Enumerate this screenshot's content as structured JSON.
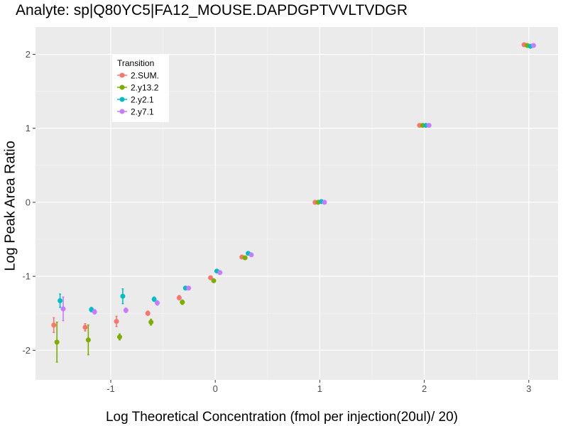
{
  "chart_data": {
    "type": "scatter",
    "title": "Analyte: sp|Q80YC5|FA12_MOUSE.DAPDGPTVVLTVDGR",
    "xlabel": "Log Theoretical Concentration (fmol per injection(20ul)/ 20)",
    "ylabel": "Log Peak Area Ratio",
    "xlim": [
      -1.72,
      3.28
    ],
    "ylim": [
      -2.4,
      2.37
    ],
    "x_ticks": [
      -1,
      0,
      1,
      2,
      3
    ],
    "x_tick_labels": [
      "-1",
      "0",
      "1",
      "2",
      "3"
    ],
    "y_ticks": [
      -2,
      -1,
      0,
      1,
      2
    ],
    "y_tick_labels": [
      "-2",
      "-1",
      "0",
      "1",
      "2"
    ],
    "grid": true,
    "legend": {
      "title": "Transition",
      "position": "top-left"
    },
    "x": [
      -1.5,
      -1.2,
      -0.9,
      -0.6,
      -0.3,
      0,
      0.3,
      1,
      2,
      3
    ],
    "series": [
      {
        "name": "2.SUM.",
        "color": "#F8766D",
        "values": [
          -1.66,
          -1.69,
          -1.61,
          -1.5,
          -1.29,
          -1.02,
          -0.74,
          0.0,
          1.04,
          2.13
        ],
        "errors": [
          0.1,
          0.05,
          0.07,
          0.03,
          0.03,
          0.02,
          0.02,
          0.02,
          0.01,
          0.01
        ]
      },
      {
        "name": "2.y13.2",
        "color": "#7CAE00",
        "values": [
          -1.89,
          -1.86,
          -1.82,
          -1.62,
          -1.35,
          -1.06,
          -0.75,
          0.0,
          1.04,
          2.12
        ],
        "errors": [
          0.27,
          0.2,
          0.04,
          0.04,
          0.03,
          0.02,
          0.02,
          0.02,
          0.01,
          0.01
        ]
      },
      {
        "name": "2.y2.1",
        "color": "#00BFC4",
        "values": [
          -1.33,
          -1.45,
          -1.27,
          -1.31,
          -1.16,
          -0.93,
          -0.69,
          0.01,
          1.04,
          2.11
        ],
        "errors": [
          0.09,
          0.03,
          0.1,
          0.03,
          0.02,
          0.02,
          0.02,
          0.02,
          0.01,
          0.01
        ]
      },
      {
        "name": "2.y7.1",
        "color": "#C77CFF",
        "values": [
          -1.44,
          -1.48,
          -1.46,
          -1.36,
          -1.16,
          -0.95,
          -0.71,
          0.0,
          1.04,
          2.12
        ],
        "errors": [
          0.16,
          0.03,
          0.03,
          0.03,
          0.02,
          0.02,
          0.02,
          0.02,
          0.01,
          0.01
        ]
      }
    ]
  }
}
